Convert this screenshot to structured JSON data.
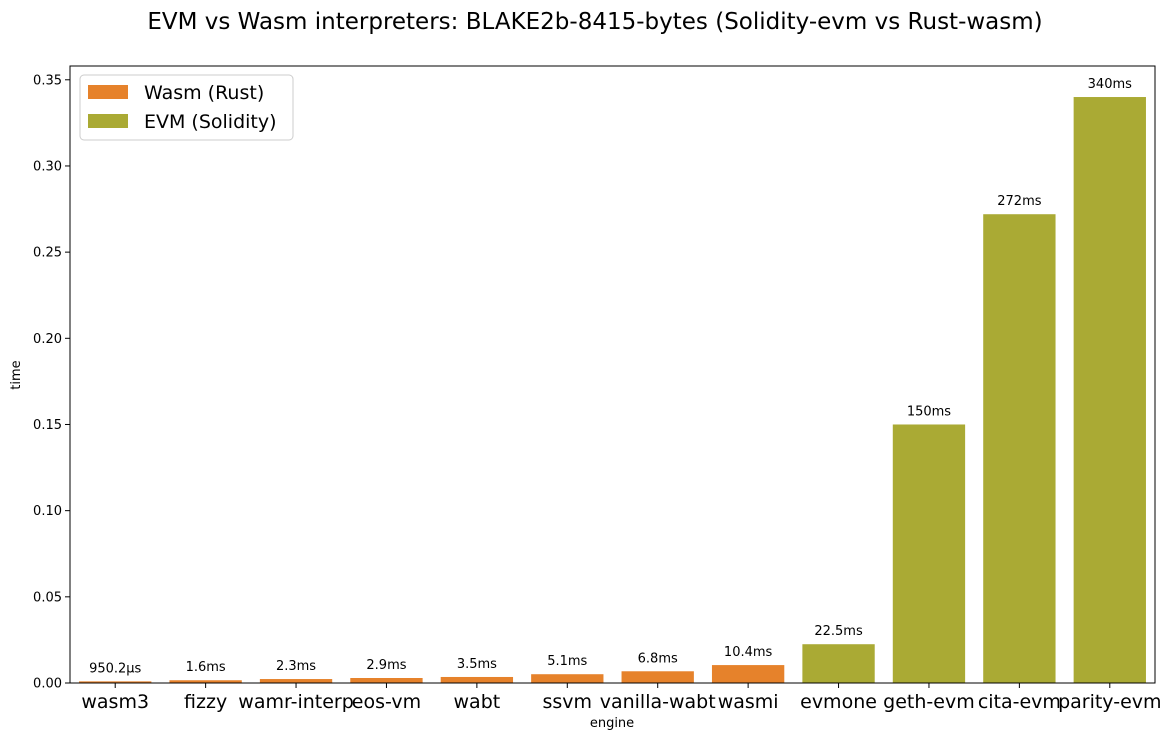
{
  "chart_data": {
    "type": "bar",
    "title": "EVM vs Wasm interpreters: BLAKE2b-8415-bytes (Solidity-evm vs Rust-wasm)",
    "xlabel": "engine",
    "ylabel": "time",
    "ylim": [
      0,
      0.358
    ],
    "yticks": [
      0.0,
      0.05,
      0.1,
      0.15,
      0.2,
      0.25,
      0.3,
      0.35
    ],
    "ytick_labels": [
      "0.00",
      "0.05",
      "0.10",
      "0.15",
      "0.20",
      "0.25",
      "0.30",
      "0.35"
    ],
    "legend_position": "top-left",
    "grid": false,
    "categories": [
      "wasm3",
      "fizzy",
      "wamr-interp",
      "eos-vm",
      "wabt",
      "ssvm",
      "vanilla-wabt",
      "wasmi",
      "evmone",
      "geth-evm",
      "cita-evm",
      "parity-evm"
    ],
    "values": [
      0.0009502,
      0.0016,
      0.0023,
      0.0029,
      0.0035,
      0.0051,
      0.0068,
      0.0104,
      0.0225,
      0.15,
      0.272,
      0.34
    ],
    "data_labels": [
      "950.2µs",
      "1.6ms",
      "2.3ms",
      "2.9ms",
      "3.5ms",
      "5.1ms",
      "6.8ms",
      "10.4ms",
      "22.5ms",
      "150ms",
      "272ms",
      "340ms"
    ],
    "series_of_bar": [
      0,
      0,
      0,
      0,
      0,
      0,
      0,
      0,
      1,
      1,
      1,
      1
    ],
    "series": [
      {
        "name": "Wasm (Rust)",
        "color": "#e6822b"
      },
      {
        "name": "EVM (Solidity)",
        "color": "#aaaa34"
      }
    ]
  }
}
